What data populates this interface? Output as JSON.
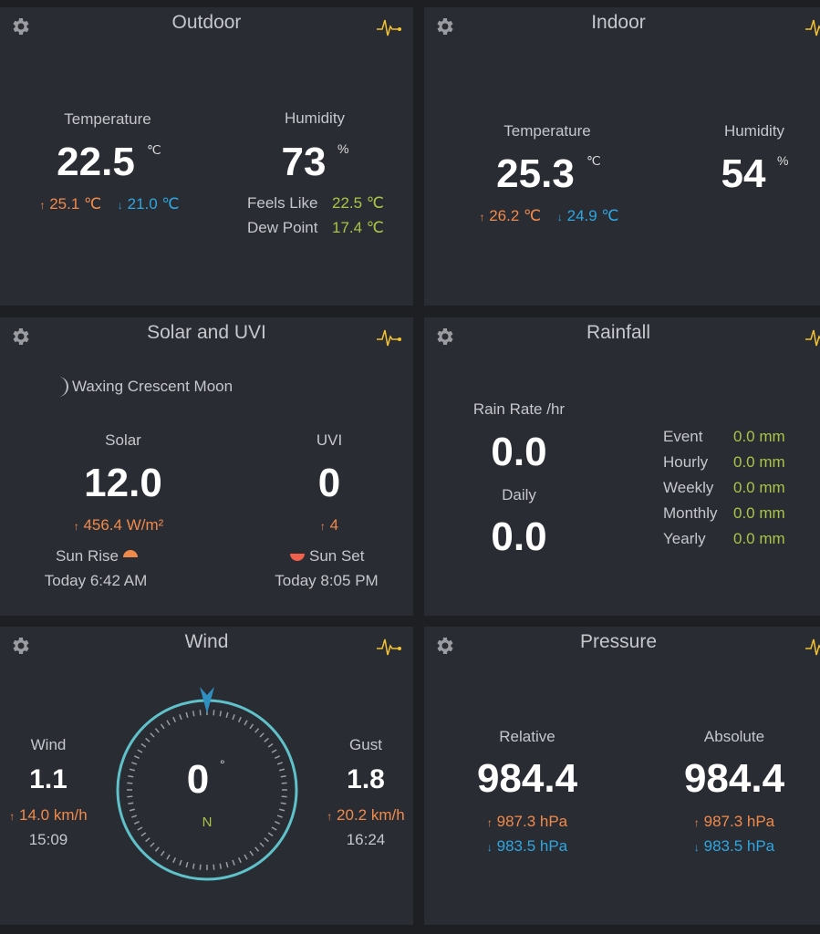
{
  "icons": {
    "settings": "gear-icon",
    "chart": "pulse-chart-icon"
  },
  "colors": {
    "high": "#f08a4b",
    "low": "#2ea6e0",
    "accent": "#a8c545",
    "chart_icon": "#f2c230",
    "compass": "#5fc1c9"
  },
  "outdoor": {
    "title": "Outdoor",
    "temp_label": "Temperature",
    "temp": "22.5",
    "temp_unit": "℃",
    "temp_high": "25.1 ℃",
    "temp_low": "21.0 ℃",
    "hum_label": "Humidity",
    "hum": "73",
    "hum_unit": "%",
    "feels_label": "Feels Like",
    "feels": "22.5 ℃",
    "dew_label": "Dew Point",
    "dew": "17.4 ℃"
  },
  "indoor": {
    "title": "Indoor",
    "temp_label": "Temperature",
    "temp": "25.3",
    "temp_unit": "℃",
    "temp_high": "26.2 ℃",
    "temp_low": "24.9 ℃",
    "hum_label": "Humidity",
    "hum": "54",
    "hum_unit": "%"
  },
  "solar": {
    "title": "Solar and UVI",
    "moon": "Waxing Crescent Moon",
    "solar_label": "Solar",
    "solar": "12.0",
    "solar_high": "456.4 W/m²",
    "uvi_label": "UVI",
    "uvi": "0",
    "uvi_high": "4",
    "sunrise_label": "Sun Rise",
    "sunrise": "Today 6:42 AM",
    "sunset_label": "Sun Set",
    "sunset": "Today 8:05 PM"
  },
  "rain": {
    "title": "Rainfall",
    "rate_label": "Rain Rate /hr",
    "rate": "0.0",
    "daily_label": "Daily",
    "daily": "0.0",
    "rows": [
      {
        "label": "Event",
        "value": "0.0 mm"
      },
      {
        "label": "Hourly",
        "value": "0.0 mm"
      },
      {
        "label": "Weekly",
        "value": "0.0 mm"
      },
      {
        "label": "Monthly",
        "value": "0.0 mm"
      },
      {
        "label": "Yearly",
        "value": "0.0 mm"
      }
    ]
  },
  "wind": {
    "title": "Wind",
    "wind_label": "Wind",
    "wind": "1.1",
    "wind_high": "14.0 km/h",
    "wind_time": "15:09",
    "gust_label": "Gust",
    "gust": "1.8",
    "gust_high": "20.2 km/h",
    "gust_time": "16:24",
    "direction": "0",
    "degree_symbol": "°",
    "cardinal": "N"
  },
  "pressure": {
    "title": "Pressure",
    "rel_label": "Relative",
    "rel": "984.4",
    "rel_high": "987.3 hPa",
    "rel_low": "983.5 hPa",
    "abs_label": "Absolute",
    "abs": "984.4",
    "abs_high": "987.3 hPa",
    "abs_low": "983.5 hPa"
  }
}
